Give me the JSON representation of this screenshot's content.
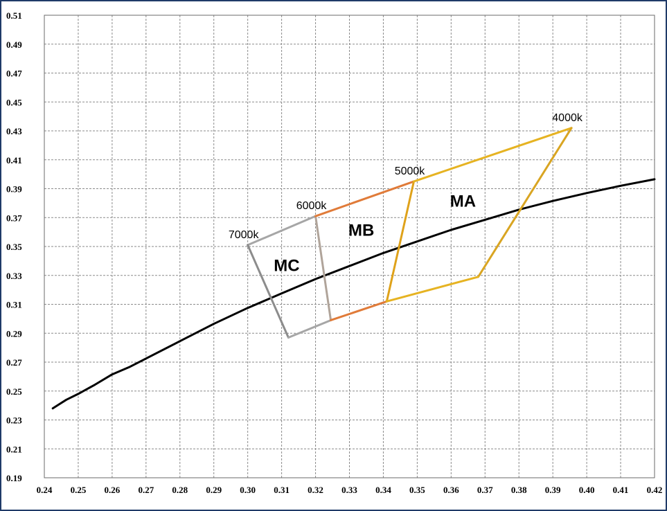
{
  "chart_data": {
    "type": "line",
    "title": "",
    "xlabel": "",
    "ylabel": "",
    "xlim": [
      0.24,
      0.42
    ],
    "ylim": [
      0.19,
      0.51
    ],
    "grid": true,
    "x_ticks": [
      "0.24",
      "0.25",
      "0.26",
      "0.27",
      "0.28",
      "0.29",
      "0.30",
      "0.31",
      "0.32",
      "0.33",
      "0.34",
      "0.35",
      "0.36",
      "0.37",
      "0.38",
      "0.39",
      "0.40",
      "0.41",
      "0.42"
    ],
    "y_ticks": [
      "0.19",
      "0.21",
      "0.23",
      "0.25",
      "0.27",
      "0.29",
      "0.31",
      "0.33",
      "0.35",
      "0.37",
      "0.39",
      "0.41",
      "0.43",
      "0.45",
      "0.47",
      "0.49",
      "0.51"
    ],
    "locus": {
      "color": "#000000",
      "points": [
        [
          0.2425,
          0.238
        ],
        [
          0.2445,
          0.241
        ],
        [
          0.2465,
          0.244
        ],
        [
          0.25,
          0.248
        ],
        [
          0.255,
          0.2545
        ],
        [
          0.26,
          0.2615
        ],
        [
          0.265,
          0.2665
        ],
        [
          0.27,
          0.2725
        ],
        [
          0.28,
          0.2845
        ],
        [
          0.29,
          0.2965
        ],
        [
          0.3,
          0.3075
        ],
        [
          0.31,
          0.3175
        ],
        [
          0.32,
          0.3275
        ],
        [
          0.33,
          0.3365
        ],
        [
          0.34,
          0.3455
        ],
        [
          0.35,
          0.3535
        ],
        [
          0.36,
          0.3615
        ],
        [
          0.37,
          0.3685
        ],
        [
          0.38,
          0.3755
        ],
        [
          0.39,
          0.3815
        ],
        [
          0.4,
          0.387
        ],
        [
          0.41,
          0.392
        ],
        [
          0.42,
          0.3965
        ]
      ]
    },
    "segments": [
      {
        "color": "#a6a6a6",
        "points": [
          [
            0.3,
            0.351
          ],
          [
            0.32,
            0.371
          ]
        ]
      },
      {
        "color": "#8c8c8c",
        "points": [
          [
            0.3,
            0.351
          ],
          [
            0.312,
            0.287
          ]
        ]
      },
      {
        "color": "#a6a6a6",
        "points": [
          [
            0.312,
            0.287
          ],
          [
            0.3245,
            0.299
          ]
        ]
      },
      {
        "color": "#b0a49a",
        "points": [
          [
            0.32,
            0.371
          ],
          [
            0.3245,
            0.299
          ]
        ]
      },
      {
        "color": "#e07b39",
        "points": [
          [
            0.32,
            0.371
          ],
          [
            0.349,
            0.395
          ]
        ]
      },
      {
        "color": "#e07b39",
        "points": [
          [
            0.3245,
            0.299
          ],
          [
            0.341,
            0.312
          ]
        ]
      },
      {
        "color": "#dfa21a",
        "points": [
          [
            0.349,
            0.395
          ],
          [
            0.341,
            0.312
          ]
        ]
      },
      {
        "color": "#e6b322",
        "points": [
          [
            0.349,
            0.395
          ],
          [
            0.3955,
            0.432
          ]
        ]
      },
      {
        "color": "#d9a522",
        "points": [
          [
            0.3955,
            0.432
          ],
          [
            0.368,
            0.329
          ]
        ]
      },
      {
        "color": "#e6b322",
        "points": [
          [
            0.341,
            0.312
          ],
          [
            0.368,
            0.329
          ]
        ]
      }
    ],
    "point_labels": [
      {
        "text": "7000k",
        "x": 0.3,
        "y": 0.351
      },
      {
        "text": "6000k",
        "x": 0.32,
        "y": 0.371
      },
      {
        "text": "5000k",
        "x": 0.349,
        "y": 0.395
      },
      {
        "text": "4000k",
        "x": 0.3955,
        "y": 0.432
      }
    ],
    "region_labels": [
      {
        "text": "MC",
        "x": 0.3115,
        "y": 0.333
      },
      {
        "text": "MB",
        "x": 0.3335,
        "y": 0.3575
      },
      {
        "text": "MA",
        "x": 0.3635,
        "y": 0.3775
      }
    ]
  }
}
